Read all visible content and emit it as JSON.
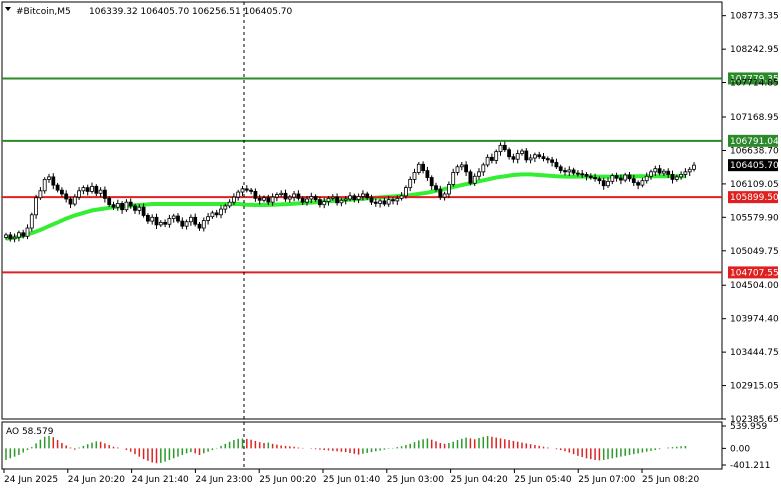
{
  "header": {
    "symbol": "#Bitcoin,M5",
    "ohlc": "106339.32 106405.70 106256.51 106405.70"
  },
  "colors": {
    "candle": "#000000",
    "ma": "#33ee33",
    "resistance": "#2a8a2a",
    "support": "#e02020",
    "ao_up": "#2a9a2a",
    "ao_down": "#dd2222",
    "price_tag_bg": "#000000"
  },
  "chart_data": [
    {
      "type": "candlestick",
      "symbol": "#Bitcoin",
      "timeframe": "M5",
      "ylim": [
        102385.65,
        108990
      ],
      "y_ticks": [
        "108773.35",
        "108242.95",
        "107714.85",
        "107168.95",
        "106638.70",
        "106109.05",
        "105579.90",
        "105049.75",
        "104504.00",
        "103974.40",
        "103444.75",
        "102915.05",
        "102385.65"
      ],
      "x_ticks": [
        "24 Jun 2025",
        "24 Jun 20:20",
        "24 Jun 21:40",
        "24 Jun 23:00",
        "25 Jun 00:20",
        "25 Jun 01:40",
        "25 Jun 03:00",
        "25 Jun 04:20",
        "25 Jun 05:40",
        "25 Jun 07:00",
        "25 Jun 08:20"
      ],
      "closes": [
        105301,
        105240,
        105265,
        105335,
        105280,
        105410,
        105620,
        105890,
        106000,
        106180,
        106220,
        106090,
        106010,
        105950,
        105870,
        105790,
        105900,
        106000,
        106050,
        105990,
        106070,
        105960,
        106010,
        105880,
        105780,
        105740,
        105800,
        105700,
        105820,
        105760,
        105690,
        105740,
        105610,
        105520,
        105580,
        105460,
        105500,
        105470,
        105560,
        105600,
        105520,
        105440,
        105510,
        105580,
        105470,
        105410,
        105530,
        105590,
        105650,
        105620,
        105710,
        105760,
        105820,
        105900,
        105980,
        106030,
        106010,
        105990,
        105880,
        105850,
        105890,
        105820,
        105900,
        105940,
        105960,
        105870,
        105900,
        105950,
        105880,
        105820,
        105870,
        105910,
        105860,
        105780,
        105830,
        105880,
        105900,
        105810,
        105850,
        105870,
        105920,
        105860,
        105910,
        105950,
        105890,
        105820,
        105800,
        105840,
        105790,
        105860,
        105840,
        105880,
        105920,
        106050,
        106180,
        106290,
        106420,
        106320,
        106210,
        106080,
        106020,
        105900,
        105950,
        106100,
        106290,
        106380,
        106410,
        106300,
        106120,
        106230,
        106300,
        106410,
        106530,
        106480,
        106620,
        106720,
        106650,
        106540,
        106500,
        106590,
        106630,
        106490,
        106520,
        106570,
        106540,
        106510,
        106490,
        106450,
        106380,
        106320,
        106300,
        106330,
        106280,
        106270,
        106260,
        106230,
        106210,
        106190,
        106160,
        106080,
        106150,
        106240,
        106200,
        106170,
        106250,
        106190,
        106130,
        106090,
        106160,
        106230,
        106300,
        106350,
        106280,
        106310,
        106260,
        106180,
        106220,
        106260,
        106300,
        106340,
        106406
      ],
      "series": [
        {
          "name": "",
          "kind": "moving_average",
          "values": [
            105240,
            105260,
            105290,
            105330,
            105380,
            105440,
            105500,
            105560,
            105610,
            105650,
            105690,
            105710,
            105730,
            105750,
            105760,
            105770,
            105780,
            105790,
            105790,
            105790,
            105790,
            105790,
            105790,
            105790,
            105790,
            105790,
            105790,
            105790,
            105780,
            105775,
            105775,
            105780,
            105785,
            105790,
            105800,
            105810,
            105820,
            105830,
            105840,
            105850,
            105860,
            105870,
            105880,
            105890,
            105900,
            105910,
            105920,
            105930,
            105950,
            105970,
            106000,
            106030,
            106060,
            106090,
            106120,
            106150,
            106180,
            106210,
            106230,
            106250,
            106260,
            106260,
            106250,
            106240,
            106230,
            106225,
            106225,
            106225,
            106225,
            106225,
            106225,
            106225,
            106230,
            106230,
            106230,
            106230,
            106230,
            106230,
            106230,
            106230
          ]
        }
      ],
      "levels": [
        {
          "value": "107779.35",
          "role": "resistance"
        },
        {
          "value": "106791.04",
          "role": "resistance"
        },
        {
          "value": "105899.50",
          "role": "support"
        },
        {
          "value": "104707.55",
          "role": "support"
        }
      ],
      "current_price": "106405.70"
    },
    {
      "type": "bar",
      "indicator": "AO",
      "label": "AO 58.579",
      "ylim": [
        -401.211,
        539.959
      ],
      "y_ticks": [
        "539.959",
        "0.00",
        "-401.211"
      ],
      "values": [
        -280,
        -240,
        -200,
        -160,
        -100,
        -40,
        30,
        120,
        210,
        280,
        300,
        270,
        200,
        130,
        70,
        20,
        -30,
        20,
        60,
        100,
        140,
        170,
        160,
        120,
        80,
        40,
        20,
        0,
        -40,
        -80,
        -140,
        -200,
        -260,
        -300,
        -340,
        -360,
        -350,
        -320,
        -280,
        -240,
        -200,
        -160,
        -120,
        -90,
        -120,
        -160,
        -120,
        -80,
        -40,
        10,
        60,
        110,
        160,
        200,
        230,
        240,
        230,
        210,
        180,
        150,
        130,
        140,
        110,
        90,
        70,
        60,
        50,
        40,
        20,
        10,
        0,
        -10,
        -20,
        -30,
        -40,
        -50,
        -60,
        -70,
        -80,
        -90,
        -110,
        -130,
        -150,
        -130,
        -110,
        -90,
        -70,
        -50,
        -30,
        -10,
        10,
        30,
        50,
        80,
        110,
        150,
        190,
        220,
        240,
        210,
        170,
        130,
        110,
        130,
        160,
        200,
        230,
        260,
        240,
        220,
        250,
        280,
        300,
        280,
        260,
        240,
        220,
        200,
        180,
        160,
        140,
        120,
        100,
        80,
        60,
        40,
        20,
        0,
        -20,
        -40,
        -70,
        -100,
        -140,
        -180,
        -210,
        -240,
        -260,
        -280,
        -290,
        -280,
        -260,
        -240,
        -220,
        -200,
        -180,
        -160,
        -140,
        -120,
        -100,
        -80,
        -60,
        -40,
        -20,
        0,
        20,
        30,
        40,
        50,
        58.579
      ]
    }
  ]
}
